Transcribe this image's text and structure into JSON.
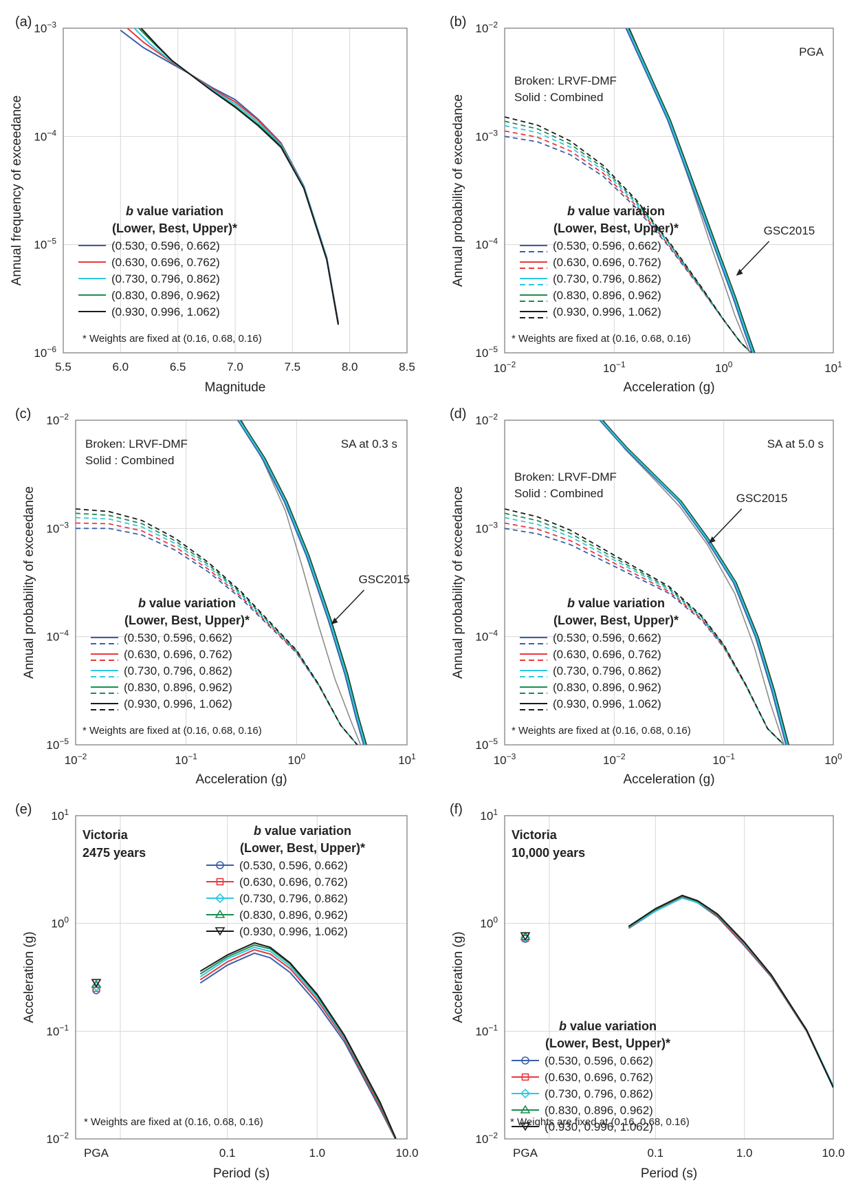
{
  "figure": {
    "series_colors": [
      "#3a5fa8",
      "#e8383d",
      "#2ec8e0",
      "#1b8c4e",
      "#1a1a1a"
    ],
    "gsc_color": "#8c8c8c",
    "weights_note": "* Weights are fixed at (0.16, 0.68, 0.16)",
    "legend_title_b": "b",
    "legend_title_rest": " value variation",
    "legend_subtitle": "(Lower, Best, Upper)*",
    "series_labels": [
      "(0.530, 0.596, 0.662)",
      "(0.630, 0.696, 0.762)",
      "(0.730, 0.796, 0.862)",
      "(0.830, 0.896, 0.962)",
      "(0.930, 0.996, 1.062)"
    ],
    "markers": [
      "circle",
      "square",
      "diamond",
      "triangle-up",
      "triangle-down"
    ]
  },
  "chart_data": [
    {
      "id": "a",
      "panel_label": "(a)",
      "type": "line",
      "xscale": "linear",
      "xlim": [
        5.5,
        8.5
      ],
      "xticks": [
        5.5,
        6.0,
        6.5,
        7.0,
        7.5,
        8.0,
        8.5
      ],
      "xticklabels": [
        "5.5",
        "6.0",
        "6.5",
        "7.0",
        "7.5",
        "8.0",
        "8.5"
      ],
      "ylim_exp": [
        -6,
        -3
      ],
      "xlabel": "Magnitude",
      "ylabel": "Annual frequency of exceedance",
      "legend_dashed": false,
      "series": [
        {
          "name": "(0.530, 0.596, 0.662)",
          "x": [
            6.0,
            6.2,
            6.4,
            6.6,
            6.8,
            7.0,
            7.2,
            7.4,
            7.6,
            7.8,
            7.9
          ],
          "y_exp": [
            -3.02,
            -3.18,
            -3.3,
            -3.42,
            -3.55,
            -3.66,
            -3.84,
            -4.06,
            -4.46,
            -5.12,
            -5.72
          ]
        },
        {
          "name": "(0.630, 0.696, 0.762)",
          "x": [
            6.06,
            6.2,
            6.4,
            6.6,
            6.8,
            7.0,
            7.2,
            7.4,
            7.6,
            7.8,
            7.9
          ],
          "y_exp": [
            -3.0,
            -3.13,
            -3.28,
            -3.42,
            -3.56,
            -3.68,
            -3.85,
            -4.07,
            -4.47,
            -5.13,
            -5.73
          ]
        },
        {
          "name": "(0.730, 0.796, 0.862)",
          "x": [
            6.12,
            6.25,
            6.4,
            6.6,
            6.8,
            7.0,
            7.2,
            7.4,
            7.6,
            7.8,
            7.9
          ],
          "y_exp": [
            -3.0,
            -3.14,
            -3.27,
            -3.42,
            -3.57,
            -3.7,
            -3.87,
            -4.08,
            -4.47,
            -5.13,
            -5.74
          ]
        },
        {
          "name": "(0.830, 0.896, 0.962)",
          "x": [
            6.16,
            6.3,
            6.45,
            6.6,
            6.8,
            7.0,
            7.2,
            7.4,
            7.6,
            7.8,
            7.9
          ],
          "y_exp": [
            -3.0,
            -3.15,
            -3.3,
            -3.42,
            -3.58,
            -3.72,
            -3.89,
            -4.09,
            -4.48,
            -5.14,
            -5.74
          ]
        },
        {
          "name": "(0.930, 0.996, 1.062)",
          "x": [
            6.18,
            6.32,
            6.45,
            6.6,
            6.8,
            7.0,
            7.2,
            7.4,
            7.6,
            7.8,
            7.9
          ],
          "y_exp": [
            -3.0,
            -3.16,
            -3.3,
            -3.42,
            -3.58,
            -3.73,
            -3.9,
            -4.1,
            -4.48,
            -5.14,
            -5.74
          ]
        }
      ],
      "legend_pos": "lower-left"
    },
    {
      "id": "b",
      "panel_label": "(b)",
      "type": "line",
      "xscale": "log",
      "xlim_exp": [
        -2,
        1
      ],
      "ylim_exp": [
        -5,
        -2
      ],
      "xlabel": "Acceleration (g)",
      "ylabel": "Annual probability of exceedance",
      "corner_text": "PGA",
      "broken_text": "Broken: LRVF-DMF",
      "solid_text": "Solid    : Combined",
      "gsc_label": "GSC2015",
      "legend_dashed": true,
      "solid_curve": {
        "x_exp": [
          -0.88,
          -0.7,
          -0.5,
          -0.3,
          -0.1,
          0.1,
          0.2,
          0.27
        ],
        "y_exp": [
          -2.0,
          -2.4,
          -2.85,
          -3.4,
          -3.95,
          -4.5,
          -4.8,
          -5.0
        ]
      },
      "gsc2015": {
        "x_exp": [
          -0.86,
          -0.7,
          -0.5,
          -0.3,
          -0.12,
          0.0,
          0.1,
          0.2,
          0.24
        ],
        "y_exp": [
          -2.0,
          -2.38,
          -2.87,
          -3.45,
          -4.0,
          -4.35,
          -4.65,
          -4.9,
          -5.0
        ]
      },
      "dashed_base": {
        "x_exp": [
          -2.0,
          -1.7,
          -1.4,
          -1.1,
          -0.8,
          -0.5,
          -0.2,
          0.0,
          0.15,
          0.25
        ],
        "y_exp": [
          -3.0,
          -3.05,
          -3.17,
          -3.37,
          -3.66,
          -4.02,
          -4.42,
          -4.7,
          -4.9,
          -5.0
        ]
      },
      "dashed_offsets": [
        0.0,
        0.05,
        0.1,
        0.14,
        0.18
      ],
      "legend_pos": "lower-left"
    },
    {
      "id": "c",
      "panel_label": "(c)",
      "type": "line",
      "xscale": "log",
      "xlim_exp": [
        -2,
        1
      ],
      "ylim_exp": [
        -5,
        -2
      ],
      "xlabel": "Acceleration (g)",
      "ylabel": "Annual probability of exceedance",
      "corner_text": "SA at 0.3 s",
      "broken_text": "Broken: LRVF-DMF",
      "solid_text": "Solid    : Combined",
      "gsc_label": "GSC2015",
      "legend_dashed": true,
      "solid_curve": {
        "x_exp": [
          -0.52,
          -0.3,
          -0.1,
          0.1,
          0.3,
          0.45,
          0.55,
          0.62
        ],
        "y_exp": [
          -2.0,
          -2.35,
          -2.75,
          -3.25,
          -3.85,
          -4.35,
          -4.75,
          -5.0
        ]
      },
      "gsc2015": {
        "x_exp": [
          -0.5,
          -0.3,
          -0.1,
          0.05,
          0.2,
          0.35,
          0.5,
          0.58
        ],
        "y_exp": [
          -2.0,
          -2.38,
          -2.84,
          -3.35,
          -3.9,
          -4.4,
          -4.8,
          -5.0
        ]
      },
      "dashed_base": {
        "x_exp": [
          -2.0,
          -1.7,
          -1.4,
          -1.1,
          -0.8,
          -0.5,
          -0.2,
          0.0,
          0.2,
          0.4,
          0.55
        ],
        "y_exp": [
          -3.0,
          -3.0,
          -3.06,
          -3.2,
          -3.4,
          -3.65,
          -3.95,
          -4.15,
          -4.45,
          -4.82,
          -5.0
        ]
      },
      "dashed_offsets": [
        0.0,
        0.05,
        0.1,
        0.14,
        0.18
      ],
      "legend_pos": "lower-left"
    },
    {
      "id": "d",
      "panel_label": "(d)",
      "type": "line",
      "xscale": "log",
      "xlim_exp": [
        -3,
        0
      ],
      "ylim_exp": [
        -5,
        -2
      ],
      "xlabel": "Acceleration (g)",
      "ylabel": "Annual probability of exceedance",
      "corner_text": "SA at 5.0 s",
      "broken_text": "Broken: LRVF-DMF",
      "solid_text": "Solid    : Combined",
      "gsc_label": "GSC2015",
      "legend_dashed": true,
      "solid_curve": {
        "x_exp": [
          -2.12,
          -1.9,
          -1.65,
          -1.4,
          -1.15,
          -0.9,
          -0.7,
          -0.55,
          -0.42
        ],
        "y_exp": [
          -2.0,
          -2.25,
          -2.5,
          -2.75,
          -3.1,
          -3.5,
          -4.0,
          -4.5,
          -5.0
        ]
      },
      "gsc2015": {
        "x_exp": [
          -2.1,
          -1.9,
          -1.65,
          -1.4,
          -1.15,
          -0.9,
          -0.72,
          -0.58,
          -0.45
        ],
        "y_exp": [
          -2.0,
          -2.27,
          -2.53,
          -2.8,
          -3.15,
          -3.6,
          -4.1,
          -4.6,
          -5.0
        ]
      },
      "dashed_base": {
        "x_exp": [
          -3.0,
          -2.7,
          -2.4,
          -2.1,
          -1.8,
          -1.5,
          -1.2,
          -1.0,
          -0.8,
          -0.6,
          -0.45
        ],
        "y_exp": [
          -3.0,
          -3.05,
          -3.15,
          -3.3,
          -3.45,
          -3.6,
          -3.85,
          -4.1,
          -4.45,
          -4.85,
          -5.0
        ]
      },
      "dashed_offsets": [
        0.0,
        0.05,
        0.1,
        0.14,
        0.18
      ],
      "legend_pos": "lower-left"
    },
    {
      "id": "e",
      "panel_label": "(e)",
      "type": "line",
      "xlabel": "Period (s)",
      "ylabel": "Acceleration (g)",
      "xticklabels": [
        "PGA",
        "0.1",
        "1.0",
        "10.0"
      ],
      "ylim_exp": [
        -2,
        1
      ],
      "site": "Victoria",
      "return_period": "2475 years",
      "pga": [
        0.24,
        0.25,
        0.26,
        0.27,
        0.28
      ],
      "periods": [
        0.05,
        0.1,
        0.2,
        0.3,
        0.5,
        1.0,
        2.0,
        5.0,
        7.5
      ],
      "series": [
        {
          "name": "(0.530, 0.596, 0.662)",
          "values": [
            0.28,
            0.41,
            0.53,
            0.48,
            0.35,
            0.18,
            0.08,
            0.019,
            0.0098
          ]
        },
        {
          "name": "(0.630, 0.696, 0.762)",
          "values": [
            0.3,
            0.44,
            0.57,
            0.52,
            0.38,
            0.195,
            0.085,
            0.02,
            0.0099
          ]
        },
        {
          "name": "(0.730, 0.796, 0.862)",
          "values": [
            0.32,
            0.47,
            0.6,
            0.55,
            0.4,
            0.205,
            0.088,
            0.021,
            0.01
          ]
        },
        {
          "name": "(0.830, 0.896, 0.962)",
          "values": [
            0.34,
            0.49,
            0.63,
            0.58,
            0.42,
            0.215,
            0.09,
            0.021,
            0.01
          ]
        },
        {
          "name": "(0.930, 0.996, 1.062)",
          "values": [
            0.36,
            0.51,
            0.66,
            0.6,
            0.43,
            0.22,
            0.092,
            0.022,
            0.0101
          ]
        }
      ],
      "legend_pos": "top-right"
    },
    {
      "id": "f",
      "panel_label": "(f)",
      "type": "line",
      "xlabel": "Period (s)",
      "ylabel": "Acceleration (g)",
      "xticklabels": [
        "PGA",
        "0.1",
        "1.0",
        "10.0"
      ],
      "ylim_exp": [
        -2,
        1
      ],
      "site": "Victoria",
      "return_period": "10,000 years",
      "pga": [
        0.72,
        0.73,
        0.74,
        0.75,
        0.76
      ],
      "periods": [
        0.05,
        0.1,
        0.2,
        0.3,
        0.5,
        1.0,
        2.0,
        5.0,
        10.0
      ],
      "series": [
        {
          "name": "(0.530, 0.596, 0.662)",
          "values": [
            0.9,
            1.3,
            1.75,
            1.55,
            1.15,
            0.62,
            0.32,
            0.1,
            0.03
          ]
        },
        {
          "name": "(0.630, 0.696, 0.762)",
          "values": [
            0.91,
            1.32,
            1.77,
            1.57,
            1.17,
            0.63,
            0.325,
            0.101,
            0.03
          ]
        },
        {
          "name": "(0.730, 0.796, 0.862)",
          "values": [
            0.92,
            1.3,
            1.72,
            1.56,
            1.2,
            0.65,
            0.33,
            0.103,
            0.031
          ]
        },
        {
          "name": "(0.830, 0.896, 0.962)",
          "values": [
            0.93,
            1.35,
            1.8,
            1.6,
            1.2,
            0.66,
            0.33,
            0.102,
            0.03
          ]
        },
        {
          "name": "(0.930, 0.996, 1.062)",
          "values": [
            0.94,
            1.37,
            1.82,
            1.62,
            1.22,
            0.67,
            0.335,
            0.103,
            0.03
          ]
        }
      ],
      "legend_pos": "lower-left"
    }
  ]
}
